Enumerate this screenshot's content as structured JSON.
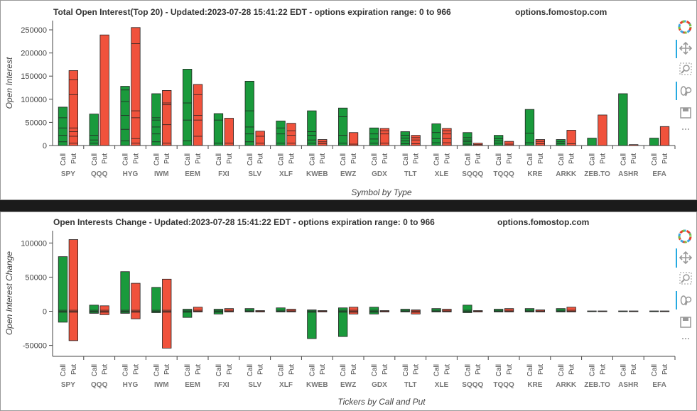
{
  "chart_data": [
    {
      "type": "bar",
      "title": "Total Open Interest(Top 20) - Updated:2023-07-28 15:41:22 EDT - options expiration range: 0 to 966",
      "site": "options.fomostop.com",
      "xlabel": "Symbol by Type",
      "ylabel": "Open Interest",
      "ylim": [
        0,
        270000
      ],
      "yticks": [
        0,
        50000,
        100000,
        150000,
        200000,
        250000
      ],
      "ytick_labels": [
        "0",
        "50000",
        "100000",
        "150000",
        "200000",
        "250000"
      ],
      "categories": [
        "SPY",
        "QQQ",
        "HYG",
        "IWM",
        "EEM",
        "FXI",
        "SLV",
        "XLF",
        "KWEB",
        "EWZ",
        "GDX",
        "TLT",
        "XLE",
        "SQQQ",
        "TQQQ",
        "KRE",
        "ARKK",
        "ZEB.TO",
        "ASHR",
        "EFA"
      ],
      "sub_categories": [
        "Call",
        "Put"
      ],
      "series": [
        {
          "name": "Call",
          "color": "#1a9a3c",
          "values": [
            83000,
            68000,
            128000,
            112000,
            165000,
            69000,
            139000,
            53000,
            75000,
            81000,
            38000,
            30000,
            47000,
            28000,
            22000,
            78000,
            13000,
            16000,
            112000,
            16000
          ],
          "segments": [
            [
              8000,
              22000,
              38000,
              60000
            ],
            [
              5000,
              12000,
              22000
            ],
            [
              10000,
              35000,
              65000,
              95000,
              120000
            ],
            [
              8000,
              25000,
              40000,
              55000,
              60000
            ],
            [
              10000,
              55000,
              92000
            ],
            [
              5000,
              55000
            ],
            [
              8000,
              25000,
              40000,
              75000
            ],
            [
              5000,
              25000,
              38000
            ],
            [
              5000,
              12000,
              22000,
              30000
            ],
            [
              5000,
              22000,
              62000
            ],
            [
              5000,
              14000,
              25000
            ],
            [
              4000,
              10000,
              16000,
              22000
            ],
            [
              6000,
              15000,
              28000
            ],
            [
              3000,
              8000,
              12000,
              17000
            ],
            [
              5000,
              10000,
              15000
            ],
            [
              6000,
              27000
            ],
            [
              4000,
              8000
            ],
            [],
            [],
            []
          ]
        },
        {
          "name": "Put",
          "color": "#f0523c",
          "values": [
            162000,
            239000,
            255000,
            119000,
            132000,
            59000,
            31000,
            48000,
            13000,
            28000,
            37000,
            22000,
            37000,
            5000,
            9000,
            13000,
            33000,
            66000,
            2000,
            41000
          ],
          "segments": [
            [
              5000,
              20000,
              30000,
              38000,
              110000,
              142000
            ],
            [],
            [
              5000,
              15000,
              60000,
              75000,
              220000
            ],
            [
              5000,
              45000,
              88000,
              92000
            ],
            [
              20000,
              55000,
              65000,
              110000
            ],
            [
              5000
            ],
            [
              5000,
              20000
            ],
            [
              5000,
              22000,
              32000
            ],
            [
              4000,
              8000
            ],
            [
              3000
            ],
            [
              5000,
              25000,
              32000
            ],
            [
              4000,
              12000,
              17000
            ],
            [
              6000,
              15000,
              25000,
              32000
            ],
            [
              2000
            ],
            [
              3000
            ],
            [
              4000,
              9000
            ],
            [
              4000
            ],
            [],
            [],
            []
          ]
        }
      ]
    },
    {
      "type": "bar",
      "title": "Open Interests Change - Updated:2023-07-28 15:41:22 EDT - options expiration range: 0 to 966",
      "site": "options.fomostop.com",
      "xlabel": "Tickers by Call and Put",
      "ylabel": "Open Interest Change",
      "ylim": [
        -66000,
        118000
      ],
      "yticks": [
        -50000,
        0,
        50000,
        100000
      ],
      "ytick_labels": [
        "-50000",
        "0",
        "50000",
        "100000"
      ],
      "categories": [
        "SPY",
        "QQQ",
        "HYG",
        "IWM",
        "EEM",
        "FXI",
        "SLV",
        "XLF",
        "KWEB",
        "EWZ",
        "GDX",
        "TLT",
        "XLE",
        "SQQQ",
        "TQQQ",
        "KRE",
        "ARKK",
        "ZEB.TO",
        "ASHR",
        "EFA"
      ],
      "sub_categories": [
        "Call",
        "Put"
      ],
      "series": [
        {
          "name": "Call",
          "color": "#1a9a3c",
          "ranges": [
            [
              -16000,
              80000
            ],
            [
              -3000,
              9000
            ],
            [
              -3000,
              58000
            ],
            [
              -2000,
              35000
            ],
            [
              -9000,
              3000
            ],
            [
              -4000,
              3000
            ],
            [
              -1000,
              4000
            ],
            [
              -1000,
              5000
            ],
            [
              -40000,
              2000
            ],
            [
              -37000,
              5000
            ],
            [
              -4000,
              6000
            ],
            [
              -1000,
              3000
            ],
            [
              -1000,
              4000
            ],
            [
              -2000,
              9000
            ],
            [
              -1000,
              3000
            ],
            [
              -1000,
              4000
            ],
            [
              -1000,
              4000
            ],
            [
              -500,
              500
            ],
            [
              -500,
              500
            ],
            [
              -500,
              500
            ]
          ]
        },
        {
          "name": "Put",
          "color": "#f0523c",
          "ranges": [
            [
              -43000,
              105000
            ],
            [
              -5000,
              8000
            ],
            [
              -11000,
              41000
            ],
            [
              -54000,
              47000
            ],
            [
              -1000,
              6000
            ],
            [
              -1000,
              4000
            ],
            [
              -1000,
              1000
            ],
            [
              -1000,
              3000
            ],
            [
              -1000,
              1000
            ],
            [
              -4000,
              6000
            ],
            [
              -1000,
              1000
            ],
            [
              -4000,
              2000
            ],
            [
              -1000,
              3000
            ],
            [
              -1000,
              1000
            ],
            [
              -1000,
              4000
            ],
            [
              -1000,
              2000
            ],
            [
              -1000,
              6000
            ],
            [
              -500,
              500
            ],
            [
              -500,
              500
            ],
            [
              -500,
              500
            ]
          ]
        }
      ]
    }
  ]
}
